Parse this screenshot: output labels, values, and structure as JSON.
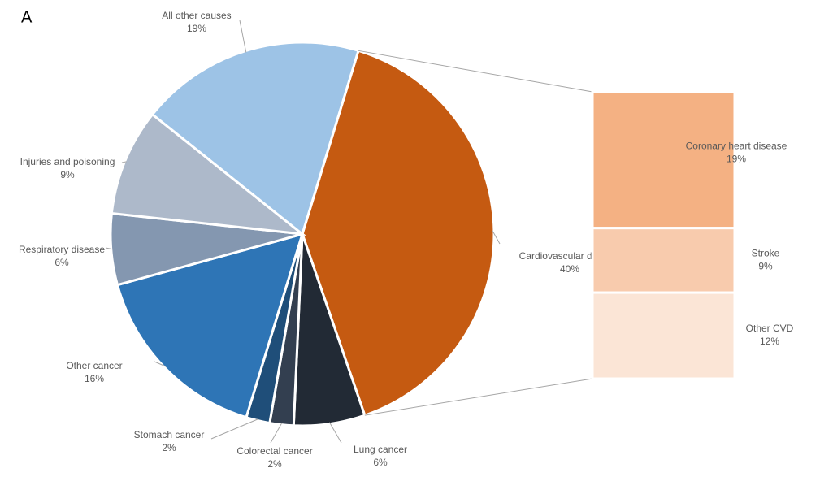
{
  "chart_data": {
    "type": "pie",
    "panel_label": "A",
    "categories": [
      "Cardiovascular disease",
      "Lung cancer",
      "Colorectal  cancer",
      "Stomach cancer",
      "Other cancer",
      "Respiratory disease",
      "Injuries and poisoning",
      "All other causes"
    ],
    "values": [
      40,
      6,
      2,
      2,
      16,
      6,
      9,
      19
    ],
    "value_labels": [
      "40%",
      "6%",
      "2%",
      "2%",
      "16%",
      "6%",
      "9%",
      "19%"
    ],
    "colors": [
      "#c55a11",
      "#222a35",
      "#333f50",
      "#1f4e79",
      "#2e75b6",
      "#8497b0",
      "#adb9ca",
      "#9dc3e6"
    ],
    "bar": {
      "categories": [
        "Coronary heart disease",
        "Stroke",
        "Other CVD"
      ],
      "values": [
        19,
        9,
        12
      ],
      "value_labels": [
        "19%",
        "9%",
        "12%"
      ],
      "colors": [
        "#f4b183",
        "#f8cbad",
        "#fbe5d6"
      ]
    }
  }
}
